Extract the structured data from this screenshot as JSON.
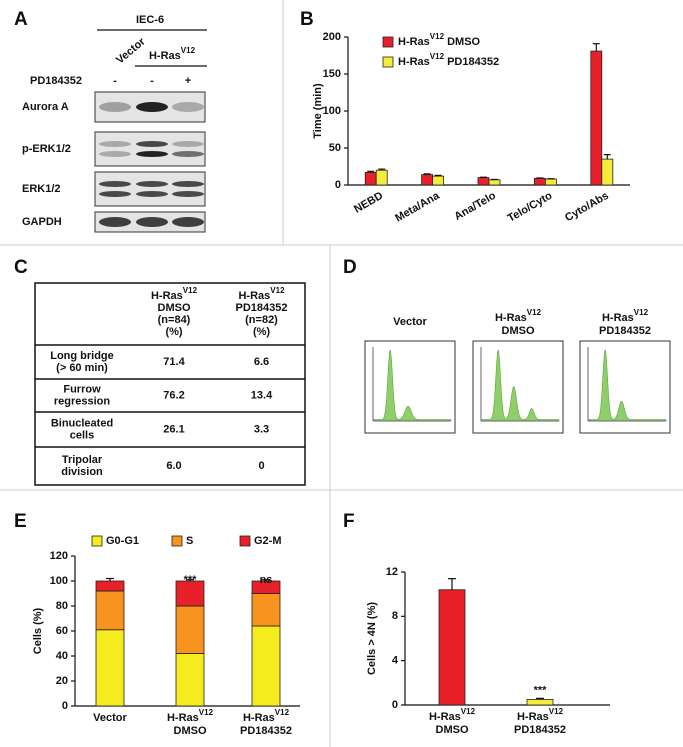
{
  "blot": {
    "panel_label": "A",
    "title": "IEC-6",
    "groups": [
      {
        "base": "Vector"
      },
      {
        "base": "H-Ras",
        "sup": "V12"
      }
    ],
    "treatment": "PD184352",
    "treatment_marks": [
      "-",
      "-",
      "+"
    ],
    "rows": [
      "Aurora A",
      "p-ERK1/2",
      "ERK1/2",
      "GAPDH"
    ]
  },
  "table": {
    "panel_label": "C",
    "header": [
      {
        "base": "H-Ras",
        "sup": "V12",
        "lines": [
          "DMSO",
          "(n=84)",
          "(%)"
        ]
      },
      {
        "base": "H-Ras",
        "sup": "V12",
        "lines": [
          "PD184352",
          "(n=82)",
          "(%)"
        ]
      }
    ],
    "rows": [
      {
        "label": [
          "Long bridge",
          "(> 60 min)"
        ],
        "cells": [
          "71.4",
          "6.6"
        ]
      },
      {
        "label": [
          "Furrow",
          "regression"
        ],
        "cells": [
          "76.2",
          "13.4"
        ]
      },
      {
        "label": [
          "Binucleated",
          "cells"
        ],
        "cells": [
          "26.1",
          "3.3"
        ]
      },
      {
        "label": [
          "Tripolar",
          "division"
        ],
        "cells": [
          "6.0",
          "0"
        ]
      }
    ]
  },
  "flow": {
    "panel_label": "D",
    "samples": [
      {
        "base": "Vector"
      },
      {
        "base": "H-Ras",
        "sup": "V12",
        "lines": [
          "DMSO"
        ]
      },
      {
        "base": "H-Ras",
        "sup": "V12",
        "lines": [
          "PD184352"
        ]
      }
    ]
  },
  "chart_data": [
    {
      "type": "bar",
      "panel_label": "B",
      "ylabel": "Time (min)",
      "categories": [
        "NEBD",
        "Meta/Ana",
        "Ana/Telo",
        "Telo/Cyto",
        "Cyto/Abs"
      ],
      "series": [
        {
          "name": {
            "base": "H-Ras",
            "sup": "V12",
            "rest": " DMSO"
          },
          "color": "#e8202a",
          "values": [
            17,
            14,
            10,
            9,
            181
          ],
          "errors": [
            1.5,
            1,
            0.5,
            0.5,
            10
          ]
        },
        {
          "name": {
            "base": "H-Ras",
            "sup": "V12",
            "rest": " PD184352"
          },
          "color": "#f4ec3a",
          "values": [
            20,
            12,
            7,
            8,
            35
          ],
          "errors": [
            1.5,
            1,
            0.5,
            0.5,
            6
          ]
        }
      ],
      "ylim": [
        0,
        200
      ],
      "yticks": [
        0,
        50,
        100,
        150,
        200
      ],
      "legend": "upper-left"
    },
    {
      "type": "stacked-bar",
      "panel_label": "E",
      "ylabel": "Cells (%)",
      "categories": [
        {
          "base": "Vector"
        },
        {
          "base": "H-Ras",
          "sup": "V12",
          "lines": [
            "DMSO"
          ]
        },
        {
          "base": "H-Ras",
          "sup": "V12",
          "lines": [
            "PD184352"
          ]
        }
      ],
      "series": [
        {
          "name": "G0-G1",
          "color": "#f4ec1e",
          "values": [
            61,
            42,
            64
          ],
          "errors": [
            2,
            3,
            3
          ],
          "annotations": [
            null,
            "***",
            "ns"
          ],
          "annotation_color": "#d8d020"
        },
        {
          "name": "S",
          "color": "#f7931e",
          "values": [
            31,
            38,
            26
          ],
          "errors": [
            2,
            3,
            3
          ],
          "annotations": [
            null,
            "**",
            "ns"
          ],
          "annotation_color": "#f08a1c"
        },
        {
          "name": "G2-M",
          "color": "#e8202a",
          "values": [
            8,
            20,
            10
          ],
          "errors": [
            2,
            1,
            1
          ],
          "annotations": [
            null,
            "***",
            "ns"
          ],
          "annotation_color": "#e8202a"
        }
      ],
      "ylim": [
        0,
        120
      ],
      "yticks": [
        0,
        20,
        40,
        60,
        80,
        100,
        120
      ],
      "legend": "top"
    },
    {
      "type": "bar",
      "panel_label": "F",
      "ylabel": "Cells > 4N (%)",
      "categories": [
        {
          "base": "H-Ras",
          "sup": "V12",
          "lines": [
            "DMSO"
          ]
        },
        {
          "base": "H-Ras",
          "sup": "V12",
          "lines": [
            "PD184352"
          ]
        }
      ],
      "colors": [
        "#e8202a",
        "#f4ec3a"
      ],
      "values": [
        10.4,
        0.5
      ],
      "errors": [
        1,
        0.1
      ],
      "annotations": [
        null,
        "***"
      ],
      "ylim": [
        0,
        12
      ],
      "yticks": [
        0,
        4,
        8,
        12
      ]
    }
  ]
}
